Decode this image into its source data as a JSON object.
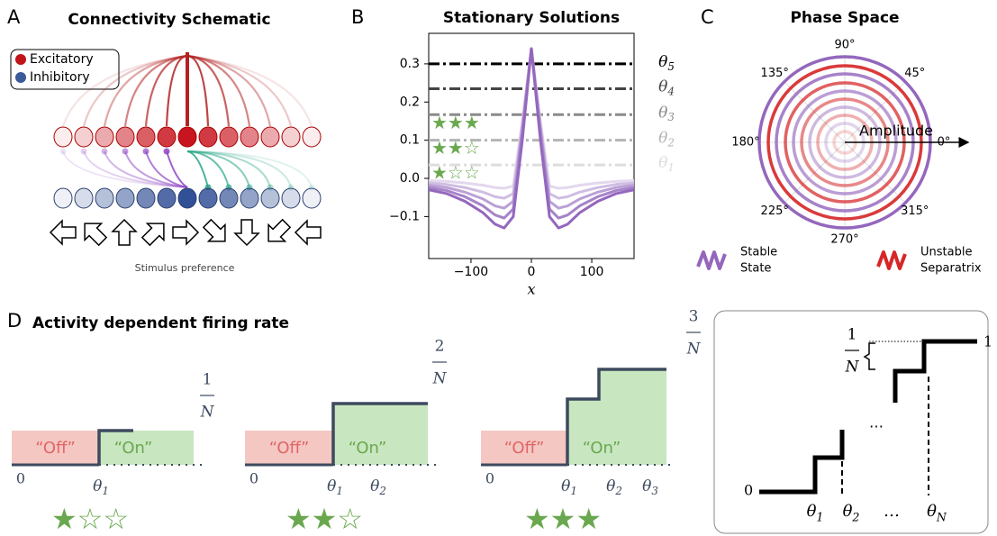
{
  "panel_a": {
    "letter": "A",
    "title": "Connectivity Schematic",
    "legend": [
      "Excitatory",
      "Inhibitory"
    ],
    "caption": "Stimulus preference"
  },
  "chart_data": {
    "type": "line",
    "letter": "B",
    "title": "Stationary Solutions",
    "xlabel": "x",
    "x": [
      -170,
      -140,
      -110,
      -80,
      -60,
      -45,
      -30,
      -15,
      0,
      15,
      30,
      45,
      60,
      80,
      110,
      140,
      170
    ],
    "xlim": [
      -170,
      170
    ],
    "xticks": [
      {
        "value": -100,
        "label": "−100"
      },
      0,
      100
    ],
    "ylim": [
      -0.21,
      0.38
    ],
    "yticks": [
      {
        "value": -0.1,
        "label": "−0.1"
      },
      {
        "value": 0,
        "label": "0.0"
      },
      0.1,
      0.2,
      0.3
    ],
    "series": [
      {
        "color": "#9467bd",
        "values": [
          -0.03,
          -0.04,
          -0.06,
          -0.09,
          -0.12,
          -0.13,
          -0.1,
          0.1,
          0.34,
          0.1,
          -0.1,
          -0.13,
          -0.12,
          -0.09,
          -0.06,
          -0.04,
          -0.03
        ]
      },
      {
        "color": "#a683c9",
        "values": [
          -0.024,
          -0.032,
          -0.048,
          -0.072,
          -0.096,
          -0.104,
          -0.08,
          0.12,
          0.34,
          0.12,
          -0.08,
          -0.104,
          -0.096,
          -0.072,
          -0.048,
          -0.032,
          -0.024
        ]
      },
      {
        "color": "#bba0d6",
        "values": [
          -0.018,
          -0.024,
          -0.036,
          -0.054,
          -0.072,
          -0.078,
          -0.06,
          0.13,
          0.34,
          0.13,
          -0.06,
          -0.078,
          -0.072,
          -0.054,
          -0.036,
          -0.024,
          -0.018
        ]
      },
      {
        "color": "#cfbde2",
        "values": [
          -0.012,
          -0.016,
          -0.024,
          -0.036,
          -0.048,
          -0.052,
          -0.04,
          0.14,
          0.34,
          0.14,
          -0.04,
          -0.052,
          -0.048,
          -0.036,
          -0.024,
          -0.016,
          -0.012
        ]
      },
      {
        "color": "#e3d8ee",
        "values": [
          -0.006,
          -0.008,
          -0.012,
          -0.018,
          -0.024,
          -0.026,
          -0.02,
          0.15,
          0.34,
          0.15,
          -0.02,
          -0.026,
          -0.024,
          -0.018,
          -0.012,
          -0.008,
          -0.006
        ]
      }
    ],
    "thresholds": [
      {
        "base": "θ",
        "sub": "1",
        "value": 0.035,
        "color": "#dddddd"
      },
      {
        "base": "θ",
        "sub": "2",
        "value": 0.1,
        "color": "#b4b4b4"
      },
      {
        "base": "θ",
        "sub": "3",
        "value": 0.167,
        "color": "#8a8a8a"
      },
      {
        "base": "θ",
        "sub": "4",
        "value": 0.235,
        "color": "#444444"
      },
      {
        "base": "θ",
        "sub": "5",
        "value": 0.3,
        "color": "#000000"
      }
    ],
    "ratings": [
      "★☆☆",
      "★★☆",
      "★★★"
    ],
    "rating_color": "#6aa84f"
  },
  "panel_c": {
    "letter": "C",
    "title": "Phase Space",
    "angles": [
      "0°",
      "45°",
      "90°",
      "135°",
      "180°",
      "225°",
      "270°",
      "315°"
    ],
    "axis_label": "Amplitude",
    "legend": [
      {
        "text": [
          "Stable",
          "State"
        ],
        "color": "#9467bd"
      },
      {
        "text": [
          "Unstable",
          "Separatrix"
        ],
        "color": "#d62728"
      }
    ]
  },
  "panel_d": {
    "letter": "D",
    "title": "Activity dependent firing rate",
    "off": "“Off”",
    "on": "“On”",
    "zero": "0",
    "subplots": [
      {
        "fraction": [
          "1",
          "N"
        ],
        "thetas": [
          {
            "base": "θ",
            "sub": "1"
          }
        ],
        "rating": "★☆☆"
      },
      {
        "fraction": [
          "2",
          "N"
        ],
        "thetas": [
          {
            "base": "θ",
            "sub": "1"
          },
          {
            "base": "θ",
            "sub": "2"
          }
        ],
        "rating": "★★☆"
      },
      {
        "fraction": [
          "3",
          "N"
        ],
        "thetas": [
          {
            "base": "θ",
            "sub": "1"
          },
          {
            "base": "θ",
            "sub": "2"
          },
          {
            "base": "θ",
            "sub": "3"
          }
        ],
        "rating": "★★★"
      }
    ],
    "summary": {
      "top": "1",
      "bottom": "0",
      "fraction": [
        "1",
        "N"
      ],
      "dots": "…",
      "thetas": [
        {
          "base": "θ",
          "sub": "1"
        },
        {
          "base": "θ",
          "sub": "2"
        },
        {
          "base": "…",
          "sub": ""
        },
        {
          "base": "θ",
          "sub": "N"
        }
      ]
    }
  }
}
